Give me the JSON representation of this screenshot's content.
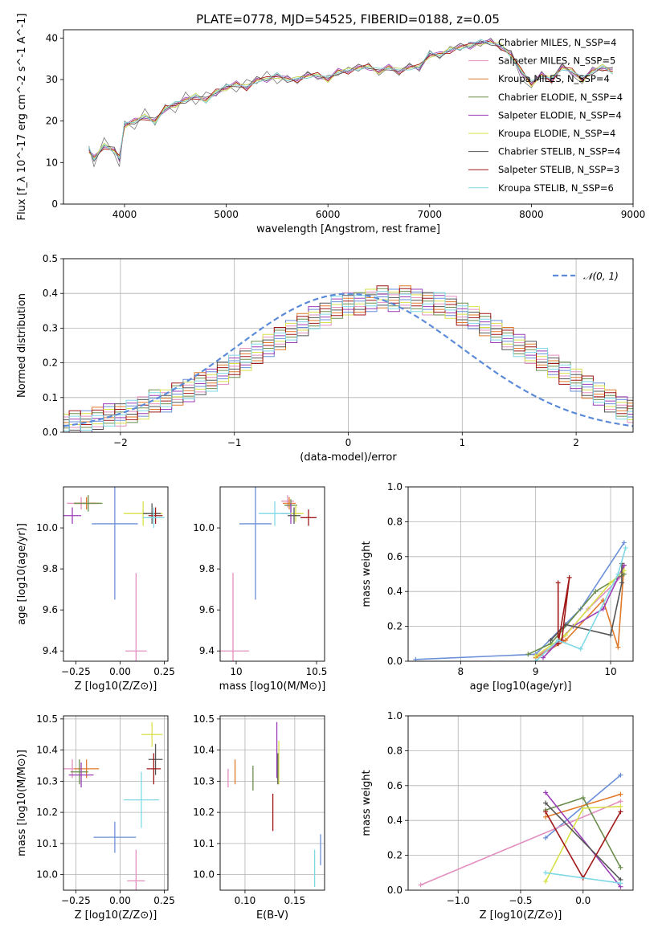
{
  "figure": {
    "title": "PLATE=0778, MJD=54525, FIBERID=0188, z=0.05"
  },
  "colors": {
    "series": [
      "#6a8fd8",
      "#e28fc0",
      "#e07a2a",
      "#6b8e4e",
      "#9b3fb8",
      "#d8e04a",
      "#555555",
      "#a01818",
      "#7fd8e6"
    ],
    "dashed_line": "#5b8ad8",
    "grid": "#b0b0b0"
  },
  "chart_data": [
    {
      "id": "spectrum",
      "type": "line",
      "xlabel": "wavelength [Angstrom, rest frame]",
      "ylabel": "Flux [f_λ 10^-17 erg cm^-2 s^-1 A^-1]",
      "xlim": [
        3400,
        9000
      ],
      "ylim": [
        0,
        42
      ],
      "xticks": [
        "4000",
        "5000",
        "6000",
        "7000",
        "8000",
        "9000"
      ],
      "yticks": [
        "0",
        "10",
        "20",
        "30",
        "40"
      ],
      "legend_position": "upper-right",
      "legend": [
        "Chabrier MILES, N_SSP=4",
        "Salpeter MILES, N_SSP=5",
        "Kroupa MILES, N_SSP=4",
        "Chabrier ELODIE, N_SSP=4",
        "Salpeter ELODIE, N_SSP=4",
        "Kroupa ELODIE, N_SSP=4",
        "Chabrier STELIB, N_SSP=4",
        "Salpeter STELIB, N_SSP=3",
        "Kroupa STELIB, N_SSP=6"
      ],
      "model_curve": {
        "x": [
          3650,
          3700,
          3800,
          3900,
          3950,
          4000,
          4100,
          4200,
          4300,
          4400,
          4500,
          4600,
          4700,
          4800,
          4900,
          5000,
          5100,
          5200,
          5300,
          5400,
          5500,
          5600,
          5700,
          5800,
          5900,
          6000,
          6100,
          6200,
          6300,
          6400,
          6500,
          6600,
          6700,
          6800,
          6900,
          7000,
          7100,
          7200,
          7300,
          7400,
          7500,
          7600,
          7700,
          7800,
          7900,
          8000,
          8100,
          8200,
          8300,
          8400,
          8500,
          8600,
          8700,
          8800
        ],
        "y": [
          13,
          11,
          14,
          13,
          11,
          19,
          20,
          21,
          20,
          23,
          24,
          25,
          26,
          25,
          27,
          28,
          29,
          28,
          30,
          30,
          31,
          30,
          30,
          31,
          31,
          30,
          32,
          32,
          33,
          33,
          32,
          33,
          32,
          33,
          33,
          36,
          36,
          37,
          38,
          38,
          39,
          39,
          38,
          36,
          32,
          29,
          31,
          30,
          33,
          32,
          30,
          32,
          33,
          32
        ]
      },
      "observed_curve": {
        "x": [
          3650,
          3700,
          3800,
          3900,
          3950,
          4000,
          4100,
          4200,
          4300,
          4400,
          4500,
          4600,
          4700,
          4800,
          4900,
          5000,
          5100,
          5200,
          5300,
          5400,
          5500,
          5600,
          5700,
          5800,
          5900,
          6000,
          6100,
          6200,
          6300,
          6400,
          6500,
          6600,
          6700,
          6800,
          6900,
          7000,
          7100,
          7200,
          7300,
          7400,
          7500,
          7600,
          7700,
          7800,
          7900,
          8000,
          8100,
          8200,
          8300,
          8400,
          8500,
          8600,
          8700,
          8800
        ],
        "y": [
          14,
          9,
          16,
          12,
          9,
          20,
          18,
          23,
          19,
          24,
          22,
          27,
          24,
          27,
          26,
          29,
          27,
          30,
          29,
          32,
          29,
          31,
          29,
          32,
          30,
          31,
          31,
          33,
          32,
          34,
          31,
          33,
          31,
          34,
          32,
          37,
          35,
          38,
          37,
          39,
          38,
          40,
          37,
          37,
          30,
          28,
          32,
          29,
          34,
          31,
          29,
          33,
          32,
          33
        ]
      }
    },
    {
      "id": "residual_histogram",
      "type": "line",
      "xlabel": "(data-model)/error",
      "ylabel": "Normed distribution",
      "xlim": [
        -2.5,
        2.5
      ],
      "ylim": [
        0,
        0.5
      ],
      "xticks": [
        "−2",
        "−1",
        "0",
        "1",
        "2"
      ],
      "yticks": [
        "0.0",
        "0.1",
        "0.2",
        "0.3",
        "0.4",
        "0.5"
      ],
      "legend_position": "upper-right",
      "legend": [
        "𝒩(0, 1)"
      ],
      "bin_edges_step": 0.1,
      "series_offsets_note": "",
      "histogram_center": [
        0.02,
        0.03,
        0.03,
        0.04,
        0.05,
        0.05,
        0.06,
        0.07,
        0.09,
        0.09,
        0.11,
        0.12,
        0.14,
        0.15,
        0.17,
        0.19,
        0.21,
        0.23,
        0.25,
        0.27,
        0.29,
        0.31,
        0.33,
        0.34,
        0.36,
        0.37,
        0.37,
        0.38,
        0.39,
        0.38,
        0.39,
        0.38,
        0.37,
        0.37,
        0.36,
        0.34,
        0.33,
        0.31,
        0.29,
        0.27,
        0.25,
        0.23,
        0.21,
        0.19,
        0.17,
        0.15,
        0.13,
        0.11,
        0.09,
        0.07,
        0.06
      ]
    },
    {
      "id": "age_vs_Z",
      "type": "scatter",
      "xlabel": "Z [log10(Z/Z⊙)]",
      "ylabel": "age [log10(age/yr)]",
      "xlim": [
        -0.32,
        0.27
      ],
      "ylim": [
        9.35,
        10.2
      ],
      "xticks": [
        "−0.25",
        "0.00",
        "0.25"
      ],
      "yticks": [
        "9.4",
        "9.6",
        "9.8",
        "10.0"
      ],
      "points": [
        {
          "x": -0.22,
          "y": 10.12,
          "xerr": 0.08,
          "yerr": 0.03
        },
        {
          "x": -0.19,
          "y": 10.12,
          "xerr": 0.07,
          "yerr": 0.03
        },
        {
          "x": -0.18,
          "y": 10.12,
          "xerr": 0.08,
          "yerr": 0.04
        },
        {
          "x": -0.27,
          "y": 10.06,
          "xerr": 0.05,
          "yerr": 0.04
        },
        {
          "x": 0.13,
          "y": 10.07,
          "xerr": 0.11,
          "yerr": 0.06
        },
        {
          "x": 0.18,
          "y": 10.07,
          "xerr": 0.05,
          "yerr": 0.05
        },
        {
          "x": 0.2,
          "y": 10.06,
          "xerr": 0.04,
          "yerr": 0.04
        },
        {
          "x": 0.19,
          "y": 10.05,
          "xerr": 0.06,
          "yerr": 0.05
        },
        {
          "x": -0.03,
          "y": 10.02,
          "xerr": 0.13,
          "yerr": 0.37
        },
        {
          "x": 0.09,
          "y": 9.4,
          "xerr": 0.06,
          "yerr": 0.38
        }
      ]
    },
    {
      "id": "age_vs_mass",
      "type": "scatter",
      "xlabel": "mass [log10(M/M⊙)]",
      "ylabel": "",
      "xlim": [
        9.9,
        10.55
      ],
      "ylim": [
        9.35,
        10.2
      ],
      "xticks": [
        "10",
        "10.5"
      ],
      "yticks": [
        "9.4",
        "9.6",
        "9.8",
        "10.0"
      ],
      "points": [
        {
          "x": 10.32,
          "y": 10.13,
          "xerr": 0.04,
          "yerr": 0.03
        },
        {
          "x": 10.33,
          "y": 10.12,
          "xerr": 0.04,
          "yerr": 0.03
        },
        {
          "x": 10.34,
          "y": 10.11,
          "xerr": 0.04,
          "yerr": 0.03
        },
        {
          "x": 10.34,
          "y": 10.07,
          "xerr": 0.06,
          "yerr": 0.05
        },
        {
          "x": 10.37,
          "y": 10.07,
          "xerr": 0.05,
          "yerr": 0.04
        },
        {
          "x": 10.36,
          "y": 10.06,
          "xerr": 0.04,
          "yerr": 0.04
        },
        {
          "x": 10.45,
          "y": 10.05,
          "xerr": 0.05,
          "yerr": 0.04
        },
        {
          "x": 10.24,
          "y": 10.07,
          "xerr": 0.1,
          "yerr": 0.06
        },
        {
          "x": 10.12,
          "y": 10.02,
          "xerr": 0.1,
          "yerr": 0.37
        },
        {
          "x": 9.98,
          "y": 9.4,
          "xerr": 0.1,
          "yerr": 0.38
        }
      ]
    },
    {
      "id": "mass_weight_vs_age",
      "type": "line",
      "xlabel": "age [log10(age/yr)]",
      "ylabel": "mass weight",
      "xlim": [
        7.3,
        10.3
      ],
      "ylim": [
        0,
        1.0
      ],
      "xticks": [
        "8",
        "9",
        "10"
      ],
      "yticks": [
        "0.0",
        "0.2",
        "0.4",
        "0.6",
        "0.8",
        "1.0"
      ],
      "series": [
        {
          "x": [
            7.4,
            9.0,
            9.6,
            10.18
          ],
          "y": [
            0.01,
            0.04,
            0.3,
            0.68
          ]
        },
        {
          "x": [
            9.0,
            9.3,
            9.7,
            10.18
          ],
          "y": [
            0.03,
            0.1,
            0.3,
            0.5
          ]
        },
        {
          "x": [
            9.0,
            9.4,
            9.9,
            10.1,
            10.18
          ],
          "y": [
            0.02,
            0.12,
            0.35,
            0.08,
            0.55
          ]
        },
        {
          "x": [
            8.9,
            9.2,
            9.8,
            10.18
          ],
          "y": [
            0.04,
            0.1,
            0.4,
            0.5
          ]
        },
        {
          "x": [
            9.1,
            9.5,
            9.9,
            10.18
          ],
          "y": [
            0.02,
            0.2,
            0.3,
            0.55
          ]
        },
        {
          "x": [
            9.0,
            9.4,
            10.0,
            10.18
          ],
          "y": [
            0.03,
            0.15,
            0.45,
            0.52
          ]
        },
        {
          "x": [
            9.2,
            9.4,
            10.0,
            10.15,
            10.15
          ],
          "y": [
            0.12,
            0.21,
            0.15,
            0.45,
            0.56
          ]
        },
        {
          "x": [
            9.3,
            9.3,
            9.45,
            9.35
          ],
          "y": [
            0.45,
            0.1,
            0.48,
            0.12
          ]
        },
        {
          "x": [
            9.0,
            9.3,
            9.6,
            10.1,
            10.2
          ],
          "y": [
            0.0,
            0.12,
            0.07,
            0.5,
            0.65
          ]
        }
      ]
    },
    {
      "id": "mass_vs_Z",
      "type": "scatter",
      "xlabel": "Z [log10(Z/Z⊙)]",
      "ylabel": "mass [log10(M/M⊙)]",
      "xlim": [
        -0.32,
        0.27
      ],
      "ylim": [
        9.95,
        10.51
      ],
      "xticks": [
        "−0.25",
        "0.00",
        "0.25"
      ],
      "yticks": [
        "10.0",
        "10.1",
        "10.2",
        "10.3",
        "10.4",
        "10.5"
      ],
      "points": [
        {
          "x": -0.27,
          "y": 10.34,
          "xerr": 0.05,
          "yerr": 0.03
        },
        {
          "x": -0.19,
          "y": 10.34,
          "xerr": 0.07,
          "yerr": 0.03
        },
        {
          "x": -0.23,
          "y": 10.33,
          "xerr": 0.05,
          "yerr": 0.04
        },
        {
          "x": -0.22,
          "y": 10.32,
          "xerr": 0.07,
          "yerr": 0.04
        },
        {
          "x": 0.18,
          "y": 10.45,
          "xerr": 0.06,
          "yerr": 0.04
        },
        {
          "x": 0.2,
          "y": 10.37,
          "xerr": 0.04,
          "yerr": 0.05
        },
        {
          "x": 0.19,
          "y": 10.34,
          "xerr": 0.04,
          "yerr": 0.05
        },
        {
          "x": 0.12,
          "y": 10.24,
          "xerr": 0.1,
          "yerr": 0.09
        },
        {
          "x": -0.03,
          "y": 10.12,
          "xerr": 0.12,
          "yerr": 0.05
        },
        {
          "x": 0.09,
          "y": 9.98,
          "xerr": 0.05,
          "yerr": 0.1
        }
      ]
    },
    {
      "id": "mass_vs_ebv",
      "type": "scatter",
      "xlabel": "E(B-V)",
      "ylabel": "",
      "xlim": [
        0.075,
        0.18
      ],
      "ylim": [
        9.95,
        10.51
      ],
      "xticks": [
        "0.10",
        "0.15"
      ],
      "yticks": [
        "10.0",
        "10.1",
        "10.2",
        "10.3",
        "10.4",
        "10.5"
      ],
      "points": [
        {
          "x": 0.083,
          "y": 10.31,
          "xerr": 0.0,
          "yerr": 0.03
        },
        {
          "x": 0.09,
          "y": 10.33,
          "xerr": 0.0,
          "yerr": 0.04
        },
        {
          "x": 0.108,
          "y": 10.31,
          "xerr": 0.0,
          "yerr": 0.04
        },
        {
          "x": 0.132,
          "y": 10.4,
          "xerr": 0.0,
          "yerr": 0.09
        },
        {
          "x": 0.134,
          "y": 10.36,
          "xerr": 0.0,
          "yerr": 0.07
        },
        {
          "x": 0.133,
          "y": 10.34,
          "xerr": 0.0,
          "yerr": 0.05
        },
        {
          "x": 0.128,
          "y": 10.2,
          "xerr": 0.0,
          "yerr": 0.06
        },
        {
          "x": 0.17,
          "y": 10.02,
          "xerr": 0.0,
          "yerr": 0.06
        },
        {
          "x": 0.176,
          "y": 10.08,
          "xerr": 0.0,
          "yerr": 0.05
        }
      ]
    },
    {
      "id": "mass_weight_vs_Z",
      "type": "line",
      "xlabel": "Z [log10(Z/Z⊙)]",
      "ylabel": "mass weight",
      "xlim": [
        -1.4,
        0.4
      ],
      "ylim": [
        0,
        1.0
      ],
      "xticks": [
        "−1.0",
        "−0.5",
        "0.0"
      ],
      "yticks": [
        "0.0",
        "0.2",
        "0.4",
        "0.6",
        "0.8",
        "1.0"
      ],
      "series": [
        {
          "x": [
            -0.3,
            0.3
          ],
          "y": [
            0.3,
            0.66
          ]
        },
        {
          "x": [
            -1.3,
            0.3
          ],
          "y": [
            0.03,
            0.51
          ]
        },
        {
          "x": [
            -0.3,
            0.3
          ],
          "y": [
            0.42,
            0.55
          ]
        },
        {
          "x": [
            -0.3,
            0.0,
            0.3
          ],
          "y": [
            0.46,
            0.53,
            0.13
          ]
        },
        {
          "x": [
            -0.3,
            0.3
          ],
          "y": [
            0.56,
            0.02
          ]
        },
        {
          "x": [
            -0.3,
            0.0,
            0.3
          ],
          "y": [
            0.05,
            0.47,
            0.48
          ]
        },
        {
          "x": [
            -0.3,
            0.3
          ],
          "y": [
            0.5,
            0.06
          ]
        },
        {
          "x": [
            -0.3,
            0.0,
            0.3
          ],
          "y": [
            0.45,
            0.07,
            0.45
          ]
        },
        {
          "x": [
            -0.3,
            0.3
          ],
          "y": [
            0.1,
            0.04
          ]
        }
      ]
    }
  ]
}
